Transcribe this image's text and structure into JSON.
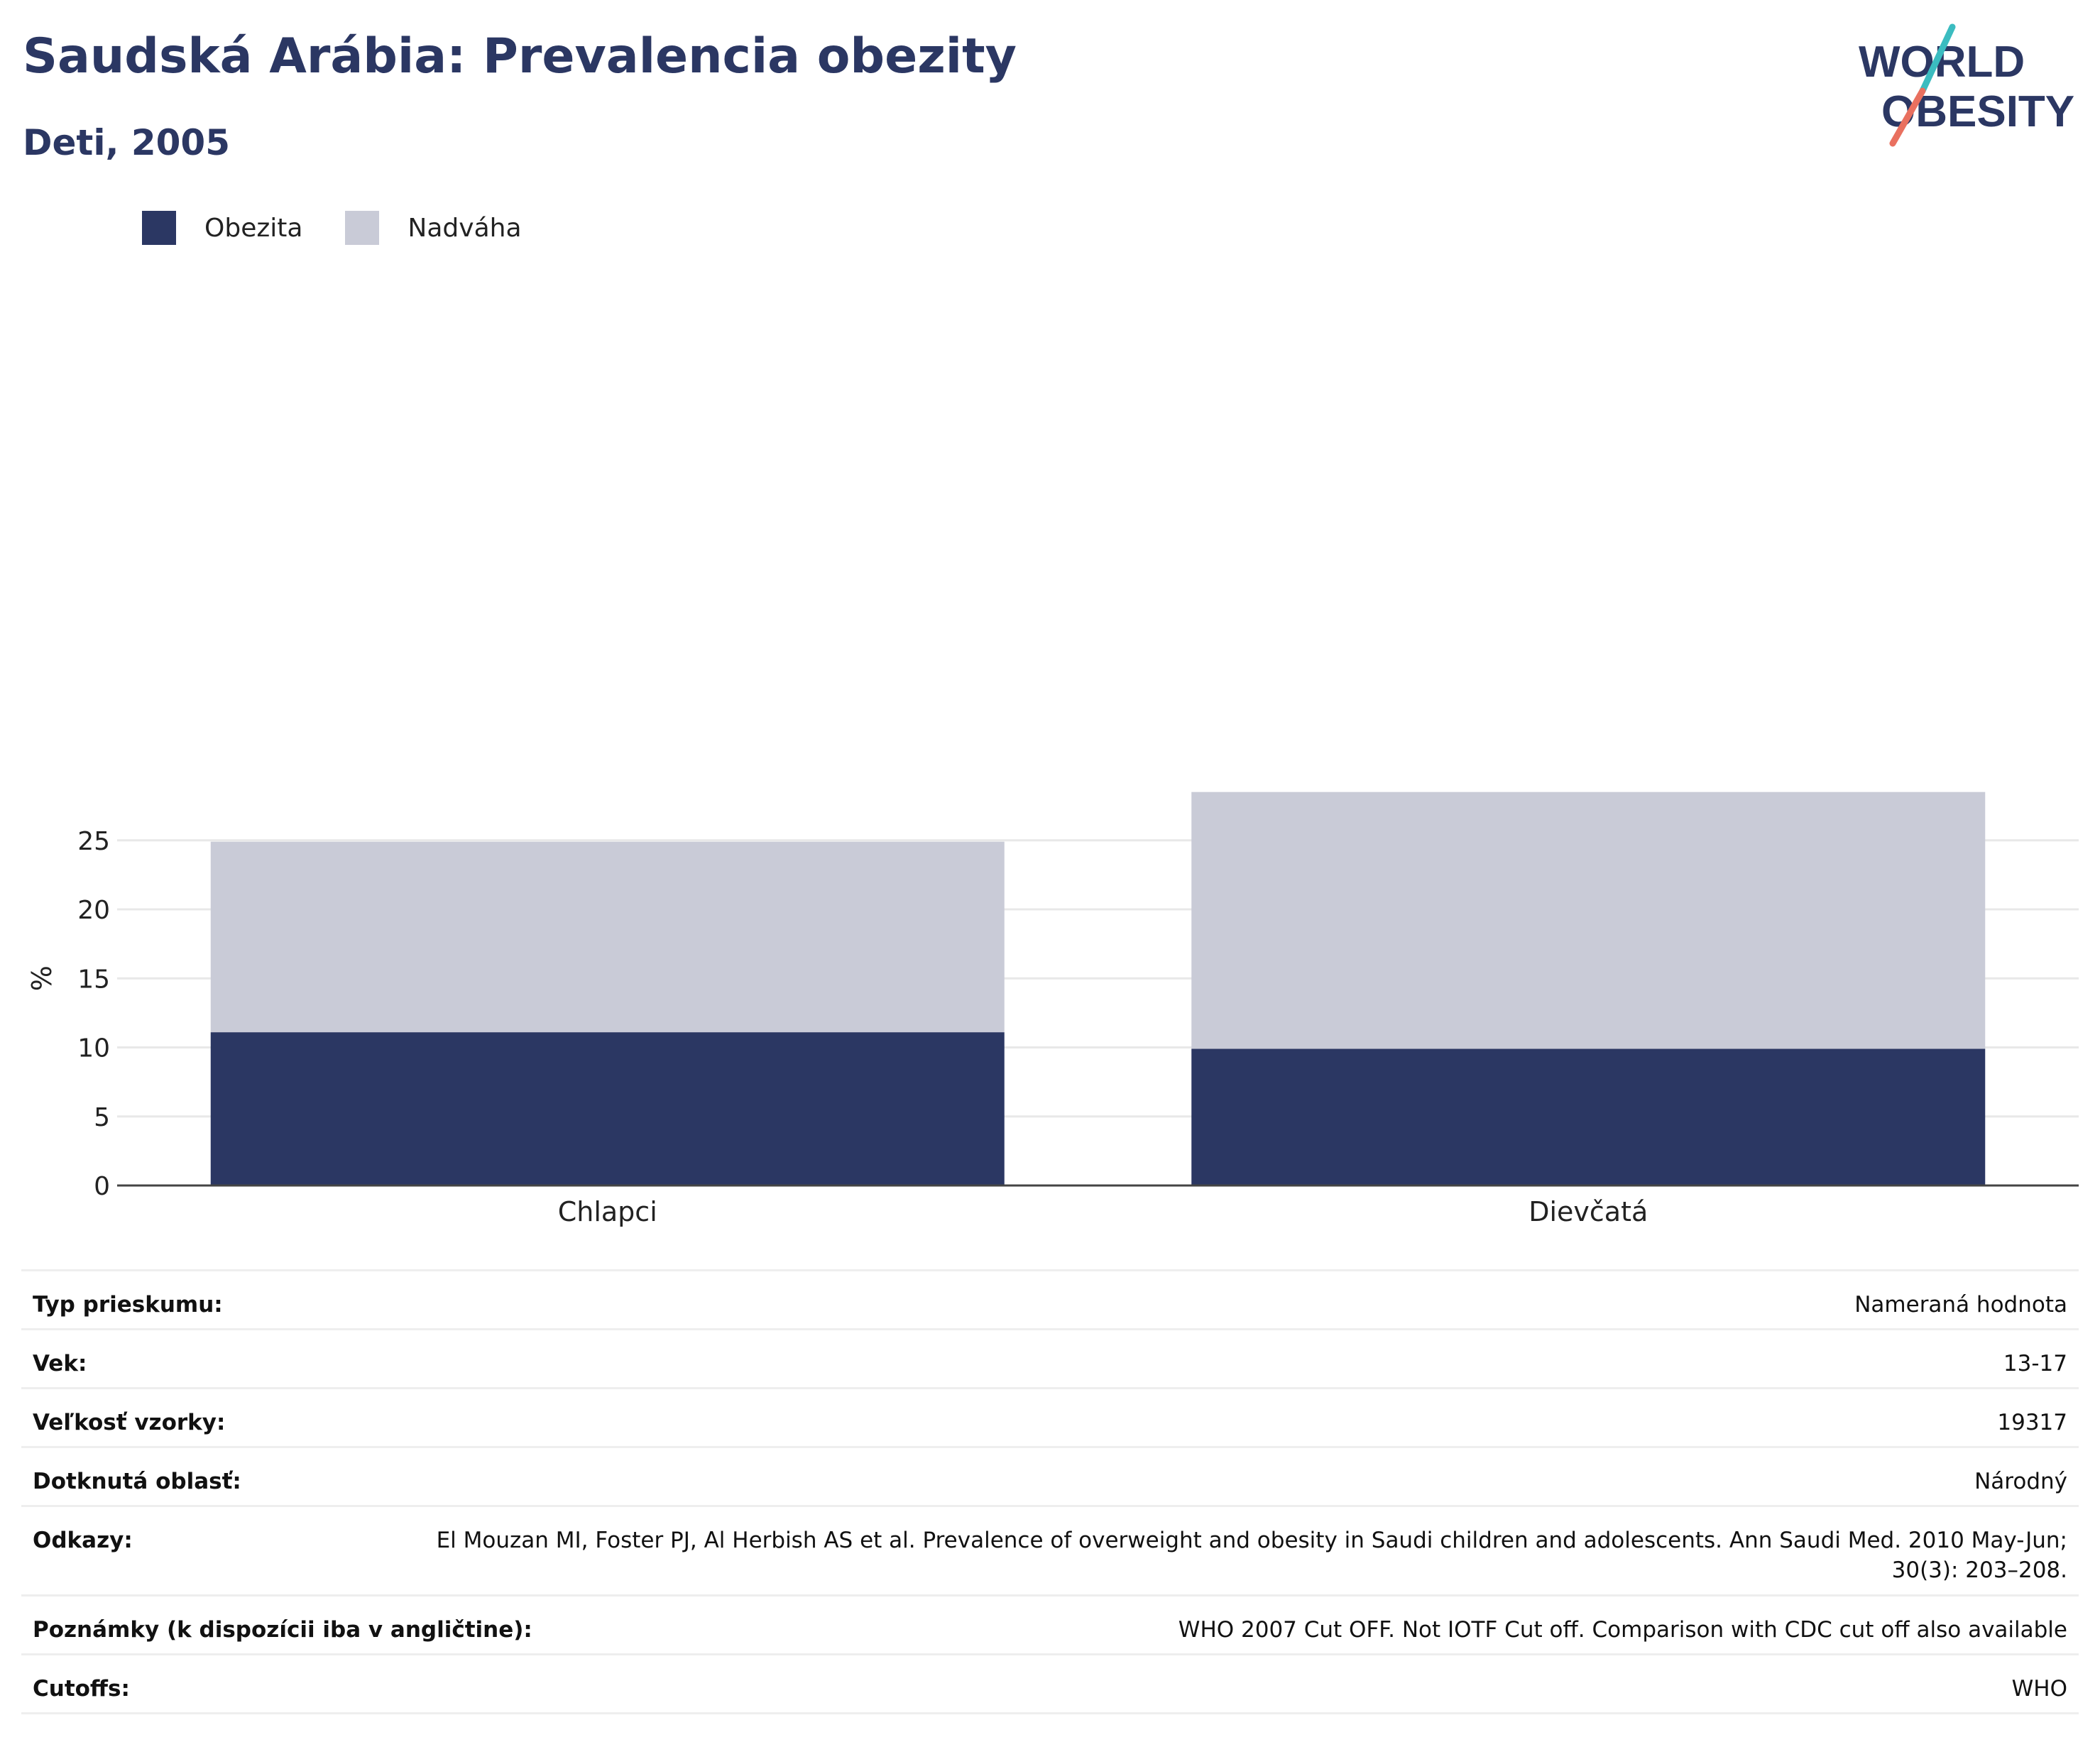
{
  "header": {
    "title": "Saudská Arábia: Prevalencia obezity",
    "subtitle": "Deti, 2005"
  },
  "logo": {
    "line1": "WORLD",
    "line2": "OBESITY"
  },
  "legend": {
    "items": [
      {
        "label": "Obezita",
        "color": "#2b3763"
      },
      {
        "label": "Nadváha",
        "color": "#c9cbd7"
      }
    ]
  },
  "chart_data": {
    "type": "bar",
    "stacked": true,
    "categories": [
      "Chlapci",
      "Dievčatá"
    ],
    "series": [
      {
        "name": "Obezita",
        "color": "#2b3763",
        "values": [
          11.1,
          9.9
        ]
      },
      {
        "name": "Nadváha",
        "color": "#c9cbd7",
        "values": [
          13.8,
          18.6
        ]
      }
    ],
    "ylabel": "%",
    "yticks": [
      0,
      5,
      10,
      15,
      20,
      25
    ],
    "ylim": [
      0,
      30
    ],
    "grid": true,
    "legend_position": "top-left"
  },
  "info": {
    "rows": [
      {
        "label": "Typ prieskumu:",
        "value": "Nameraná hodnota"
      },
      {
        "label": "Vek:",
        "value": "13-17"
      },
      {
        "label": "Veľkosť vzorky:",
        "value": "19317"
      },
      {
        "label": "Dotknutá oblasť:",
        "value": "Národný"
      },
      {
        "label": "Odkazy:",
        "value": "El Mouzan MI, Foster PJ, Al Herbish AS et al. Prevalence of overweight and obesity in Saudi children and adolescents. Ann Saudi Med. 2010 May-Jun; 30(3): 203–208."
      },
      {
        "label": "Poznámky (k dispozícii iba v angličtine):",
        "value": "WHO 2007 Cut OFF. Not IOTF Cut off. Comparison with CDC cut off also available"
      },
      {
        "label": "Cutoffs:",
        "value": "WHO"
      }
    ]
  }
}
